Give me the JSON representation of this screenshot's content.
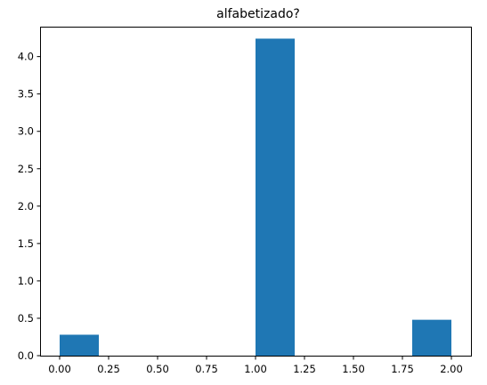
{
  "chart_data": {
    "type": "bar",
    "title": "alfabetizado?",
    "xlabel": "",
    "ylabel": "",
    "xlim": [
      -0.1,
      2.1
    ],
    "ylim": [
      0,
      4.4
    ],
    "bins": [
      {
        "x0": 0.0,
        "x1": 0.2,
        "value": 0.28
      },
      {
        "x0": 0.2,
        "x1": 0.4,
        "value": 0
      },
      {
        "x0": 0.4,
        "x1": 0.6,
        "value": 0
      },
      {
        "x0": 0.6,
        "x1": 0.8,
        "value": 0
      },
      {
        "x0": 0.8,
        "x1": 1.0,
        "value": 0
      },
      {
        "x0": 1.0,
        "x1": 1.2,
        "value": 4.24
      },
      {
        "x0": 1.2,
        "x1": 1.4,
        "value": 0
      },
      {
        "x0": 1.4,
        "x1": 1.6,
        "value": 0
      },
      {
        "x0": 1.6,
        "x1": 1.8,
        "value": 0
      },
      {
        "x0": 1.8,
        "x1": 2.0,
        "value": 0.48
      }
    ],
    "x_ticks": [
      {
        "value": 0.0,
        "label": "0.00"
      },
      {
        "value": 0.25,
        "label": "0.25"
      },
      {
        "value": 0.5,
        "label": "0.50"
      },
      {
        "value": 0.75,
        "label": "0.75"
      },
      {
        "value": 1.0,
        "label": "1.00"
      },
      {
        "value": 1.25,
        "label": "1.25"
      },
      {
        "value": 1.5,
        "label": "1.50"
      },
      {
        "value": 1.75,
        "label": "1.75"
      },
      {
        "value": 2.0,
        "label": "2.00"
      }
    ],
    "y_ticks": [
      {
        "value": 0.0,
        "label": "0.0"
      },
      {
        "value": 0.5,
        "label": "0.5"
      },
      {
        "value": 1.0,
        "label": "1.0"
      },
      {
        "value": 1.5,
        "label": "1.5"
      },
      {
        "value": 2.0,
        "label": "2.0"
      },
      {
        "value": 2.5,
        "label": "2.5"
      },
      {
        "value": 3.0,
        "label": "3.0"
      },
      {
        "value": 3.5,
        "label": "3.5"
      },
      {
        "value": 4.0,
        "label": "4.0"
      }
    ],
    "grid": false,
    "bar_color": "#1f77b4"
  }
}
